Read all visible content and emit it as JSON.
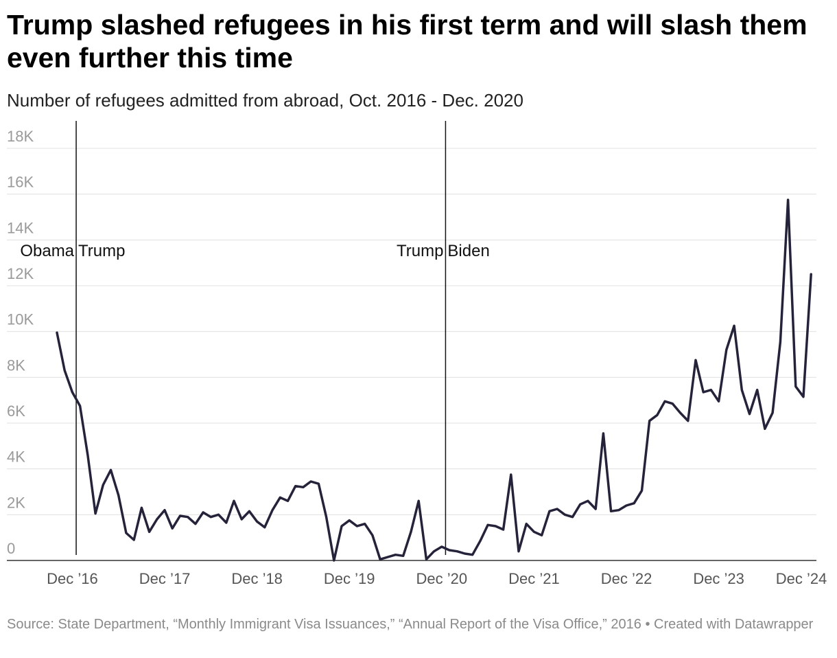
{
  "header": {
    "title": "Trump slashed refugees in his first term and will slash them even further this time",
    "subtitle": "Number of refugees admitted from abroad, Oct. 2016 - Dec. 2020"
  },
  "footer": {
    "source": "Source: State Department, “Monthly Immigrant Visa Issuances,” “Annual Report of the Visa Office,” 2016 • Created with Datawrapper"
  },
  "chart_data": {
    "type": "line",
    "ylim": [
      0,
      18000
    ],
    "y_ticks": [
      0,
      2000,
      4000,
      6000,
      8000,
      10000,
      12000,
      14000,
      16000,
      18000
    ],
    "y_tick_labels": [
      "0",
      "2K",
      "4K",
      "6K",
      "8K",
      "10K",
      "12K",
      "14K",
      "16K",
      "18K"
    ],
    "x_range": [
      "2016-10",
      "2024-11"
    ],
    "x_ticks": [
      "2016-12",
      "2017-12",
      "2018-12",
      "2019-12",
      "2020-12",
      "2021-12",
      "2022-12",
      "2023-12",
      "2024-12"
    ],
    "x_tick_labels": [
      "Dec ’16",
      "Dec ’17",
      "Dec ’18",
      "Dec ’19",
      "Dec ’20",
      "Dec ’21",
      "Dec ’22",
      "Dec ’23",
      "Dec ’24"
    ],
    "grid": true,
    "line_color": "#25233a",
    "markers": [
      {
        "x": "2017-01",
        "left_label": "Obama",
        "right_label": "Trump"
      },
      {
        "x": "2021-01",
        "left_label": "Trump",
        "right_label": "Biden"
      }
    ],
    "series": [
      {
        "start": "2016-10",
        "values": [
          9950,
          8300,
          7350,
          6750,
          4600,
          2050,
          3300,
          3950,
          2850,
          1200,
          900,
          2300,
          1250,
          1800,
          2200,
          1400,
          1950,
          1900,
          1600,
          2100,
          1900,
          2000,
          1650,
          2600,
          1800,
          2150,
          1700,
          1450,
          2200,
          2750,
          2600,
          3250,
          3200,
          3450,
          3350,
          1900,
          0,
          1500,
          1750,
          1500,
          1600,
          1100,
          50,
          150,
          250,
          200,
          1250,
          2600,
          50,
          400,
          600,
          450,
          400,
          300,
          250,
          850,
          1550,
          1500,
          1350,
          3750,
          400,
          1600,
          1250,
          1100,
          2150,
          2250,
          2000,
          1900,
          2450,
          2600,
          2250,
          5550,
          2150,
          2200,
          2400,
          2500,
          3050,
          6100,
          6350,
          6950,
          6850,
          6450,
          6100,
          8750,
          7350,
          7450,
          6950,
          9200,
          10250,
          7450,
          6400,
          7450,
          5750,
          6450,
          9550,
          15750,
          7600,
          7150,
          12500
        ]
      }
    ]
  }
}
